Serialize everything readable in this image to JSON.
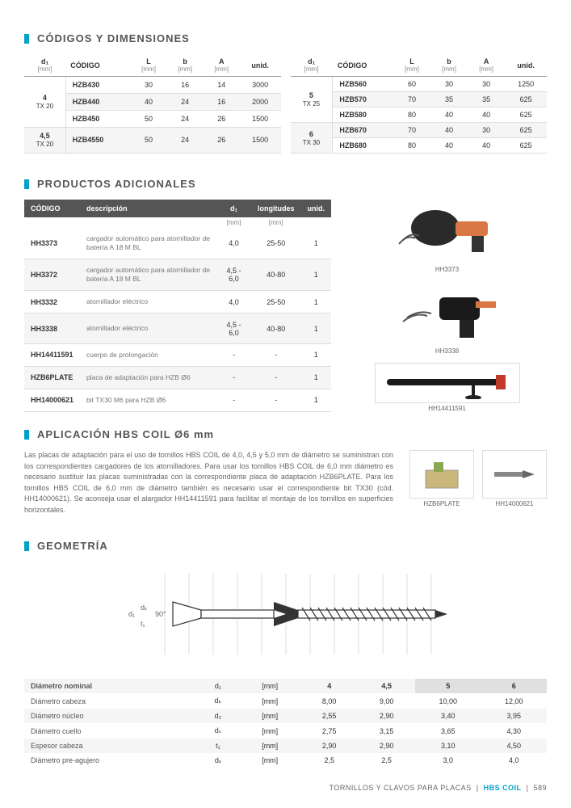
{
  "sections": {
    "codes": "CÓDIGOS Y DIMENSIONES",
    "products": "PRODUCTOS ADICIONALES",
    "application": "APLICACIÓN HBS COIL Ø6 mm",
    "geometry": "GEOMETRÍA"
  },
  "codes_headers": {
    "d1": "d₁",
    "d1_unit": "[mm]",
    "codigo": "CÓDIGO",
    "L": "L",
    "L_unit": "[mm]",
    "b": "b",
    "b_unit": "[mm]",
    "A": "A",
    "A_unit": "[mm]",
    "unid": "unid."
  },
  "codes_left": {
    "groups": [
      {
        "head": "4",
        "sub": "TX 20",
        "rows": [
          {
            "code": "HZB430",
            "L": "30",
            "b": "16",
            "A": "14",
            "u": "3000"
          },
          {
            "code": "HZB440",
            "L": "40",
            "b": "24",
            "A": "16",
            "u": "2000"
          },
          {
            "code": "HZB450",
            "L": "50",
            "b": "24",
            "A": "26",
            "u": "1500"
          }
        ]
      },
      {
        "head": "4,5",
        "sub": "TX 20",
        "rows": [
          {
            "code": "HZB4550",
            "L": "50",
            "b": "24",
            "A": "26",
            "u": "1500"
          }
        ]
      }
    ]
  },
  "codes_right": {
    "groups": [
      {
        "head": "5",
        "sub": "TX 25",
        "rows": [
          {
            "code": "HZB560",
            "L": "60",
            "b": "30",
            "A": "30",
            "u": "1250"
          },
          {
            "code": "HZB570",
            "L": "70",
            "b": "35",
            "A": "35",
            "u": "625"
          },
          {
            "code": "HZB580",
            "L": "80",
            "b": "40",
            "A": "40",
            "u": "625"
          }
        ]
      },
      {
        "head": "6",
        "sub": "TX 30",
        "rows": [
          {
            "code": "HZB670",
            "L": "70",
            "b": "40",
            "A": "30",
            "u": "625"
          },
          {
            "code": "HZB680",
            "L": "80",
            "b": "40",
            "A": "40",
            "u": "625"
          }
        ]
      }
    ]
  },
  "prod_headers": {
    "codigo": "CÓDIGO",
    "desc": "descripción",
    "d1": "d₁",
    "d1_unit": "[mm]",
    "long": "longitudes",
    "long_unit": "[mm]",
    "unid": "unid."
  },
  "prod_rows": [
    {
      "code": "HH3373",
      "desc": "cargador automático para atornillador de batería A 18 M BL",
      "d1": "4,0",
      "long": "25-50",
      "u": "1"
    },
    {
      "code": "HH3372",
      "desc": "cargador automático para atornillador de batería A 18 M BL",
      "d1": "4,5 - 6,0",
      "long": "40-80",
      "u": "1"
    },
    {
      "code": "HH3332",
      "desc": "atornillador eléctrico",
      "d1": "4,0",
      "long": "25-50",
      "u": "1"
    },
    {
      "code": "HH3338",
      "desc": "atornillador eléctrico",
      "d1": "4,5 - 6,0",
      "long": "40-80",
      "u": "1"
    },
    {
      "code": "HH14411591",
      "desc": "cuerpo de prolongación",
      "d1": "-",
      "long": "-",
      "u": "1"
    },
    {
      "code": "HZB6PLATE",
      "desc": "placa de adaptación para HZB Ø6",
      "d1": "-",
      "long": "-",
      "u": "1"
    },
    {
      "code": "HH14000621",
      "desc": "bit TX30 M6 para HZB Ø6",
      "d1": "-",
      "long": "-",
      "u": "1"
    }
  ],
  "product_images": [
    {
      "caption": "HH3373"
    },
    {
      "caption": "HH3338"
    },
    {
      "caption": "HH14411591"
    },
    {
      "caption": "HZB6PLATE"
    },
    {
      "caption": "HH14000621"
    }
  ],
  "application_text": "Las placas de adaptación para el uso de tornillos HBS COIL de 4,0, 4,5 y 5,0 mm de diámetro se suministran con los correspondientes cargadores de los atornilladores. Para usar los tornillos HBS COIL de 6,0 mm diámetro es necesario sustituir las placas suministradas con la correspondiente placa de adaptación HZB6PLATE. Para los tornillos HBS COIL de 6,0 mm de diámetro también es necesario usar el correspondiente bit TX30 (cód. HH14000621). Se aconseja usar el alargador HH14411591 para facilitar el montaje de los tornillos en superficies horizontales.",
  "geom_labels": [
    "d₁",
    "dₖ",
    "t₁",
    "90°"
  ],
  "geom_table": {
    "cols": [
      "4",
      "4,5",
      "5",
      "6"
    ],
    "rows": [
      {
        "label": "Diámetro nominal",
        "sym": "d₁",
        "unit": "[mm]",
        "vals": [
          "4",
          "4,5",
          "5",
          "6"
        ],
        "header": true
      },
      {
        "label": "Diámetro cabeza",
        "sym": "dₖ",
        "unit": "[mm]",
        "vals": [
          "8,00",
          "9,00",
          "10,00",
          "12,00"
        ]
      },
      {
        "label": "Diámetro núcleo",
        "sym": "d₂",
        "unit": "[mm]",
        "vals": [
          "2,55",
          "2,90",
          "3,40",
          "3,95"
        ]
      },
      {
        "label": "Diámetro cuello",
        "sym": "dₛ",
        "unit": "[mm]",
        "vals": [
          "2,75",
          "3,15",
          "3,65",
          "4,30"
        ]
      },
      {
        "label": "Espesor cabeza",
        "sym": "t₁",
        "unit": "[mm]",
        "vals": [
          "2,90",
          "2,90",
          "3,10",
          "4,50"
        ]
      },
      {
        "label": "Diámetro pre-agujero",
        "sym": "dᵥ",
        "unit": "[mm]",
        "vals": [
          "2,5",
          "2,5",
          "3,0",
          "4,0"
        ]
      }
    ]
  },
  "footer": {
    "text": "TORNILLOS Y CLAVOS PARA PLACAS",
    "product": "HBS COIL",
    "page": "589"
  }
}
